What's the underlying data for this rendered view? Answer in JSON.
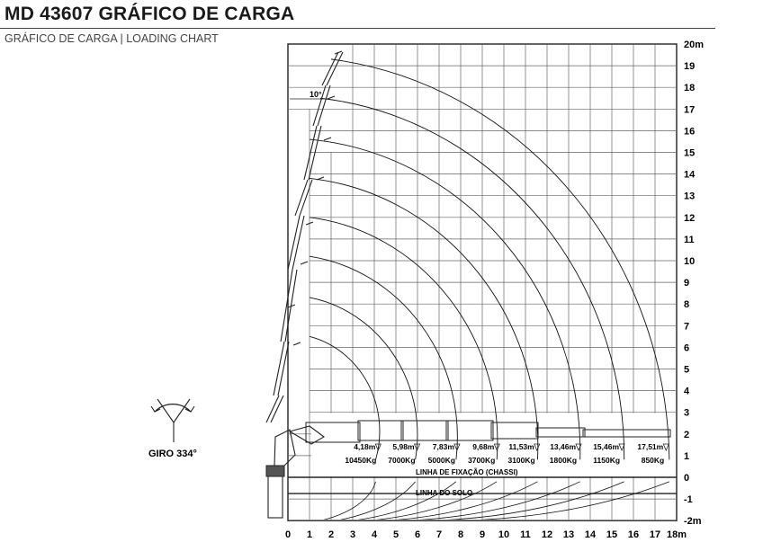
{
  "header": {
    "title": "MD 43607 GRÁFICO DE CARGA",
    "subtitle": "GRÁFICO DE CARGA | LOADING CHART"
  },
  "chart_data": {
    "type": "diagram",
    "x_ticks": [
      "0",
      "1",
      "2",
      "3",
      "4",
      "5",
      "6",
      "7",
      "8",
      "9",
      "10",
      "11",
      "12",
      "13",
      "14",
      "15",
      "16",
      "17",
      "18m"
    ],
    "y_ticks": [
      "-2m",
      "-1",
      "0",
      "1",
      "2",
      "3",
      "4",
      "5",
      "6",
      "7",
      "8",
      "9",
      "10",
      "11",
      "12",
      "13",
      "14",
      "15",
      "16",
      "17",
      "18",
      "19",
      "20m"
    ],
    "xlim": [
      0,
      18
    ],
    "ylim": [
      -2,
      20
    ],
    "boom_angle_label": "10°",
    "rotation_label": "GIRO 334°",
    "fixing_line_label": "LINHA DE FIXAÇÃO (CHASSI)",
    "ground_line_label": "LINHA DO SOLO",
    "reach_levels": [
      {
        "reach": "4,18m",
        "load": "10450Kg"
      },
      {
        "reach": "5,98m",
        "load": "7000Kg"
      },
      {
        "reach": "7,83m",
        "load": "5000Kg"
      },
      {
        "reach": "9,68m",
        "load": "3700Kg"
      },
      {
        "reach": "11,53m",
        "load": "3100Kg"
      },
      {
        "reach": "13,46m",
        "load": "1800Kg"
      },
      {
        "reach": "15,46m",
        "load": "1150Kg"
      },
      {
        "reach": "17,51m",
        "load": "850Kg"
      }
    ],
    "arcs": [
      {
        "tip": [
          1,
          6.5
        ],
        "radius": 4.18
      },
      {
        "tip": [
          1,
          8.3
        ],
        "radius": 5.98
      },
      {
        "tip": [
          1,
          10.2
        ],
        "radius": 7.83
      },
      {
        "tip": [
          1,
          12
        ],
        "radius": 9.68
      },
      {
        "tip": [
          1,
          13.8
        ],
        "radius": 11.53
      },
      {
        "tip": [
          1,
          15.6
        ],
        "radius": 13.46
      },
      {
        "tip": [
          1.5,
          17.5
        ],
        "radius": 15.46
      },
      {
        "tip": [
          2,
          19.3
        ],
        "radius": 17.51
      }
    ]
  }
}
